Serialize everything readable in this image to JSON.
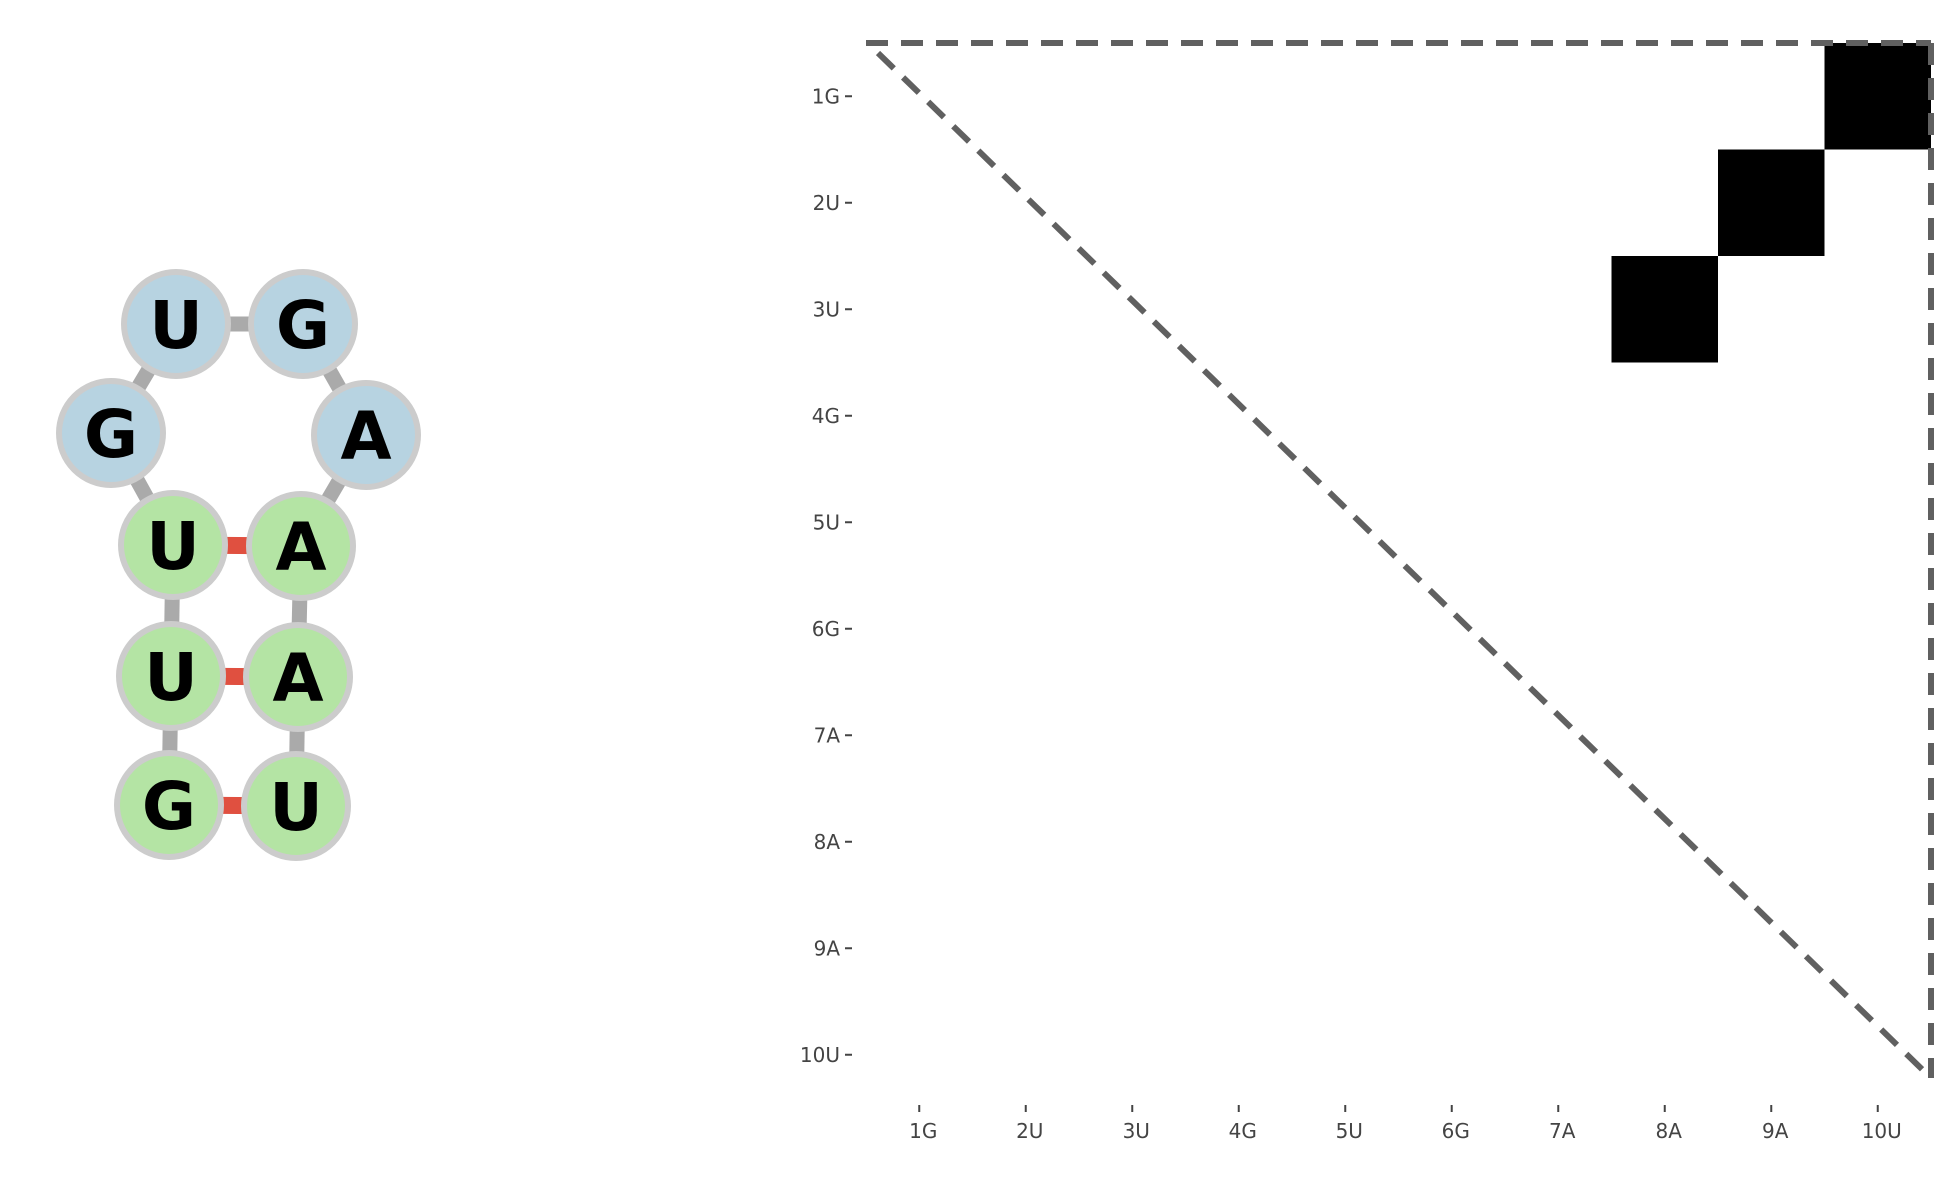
{
  "sequence": [
    "G",
    "U",
    "U",
    "G",
    "U",
    "G",
    "A",
    "A",
    "A",
    "U"
  ],
  "colors": {
    "stem_fill": "#b4e4a4",
    "loop_fill": "#b7d3e1",
    "node_stroke": "#cccccc",
    "backbone": "#aaaaaa",
    "pair_bond": "#e05040",
    "matrix_cell": "#000000",
    "diagonal": "#606060"
  },
  "structure": {
    "nodes": [
      {
        "index": 1,
        "letter": "G",
        "type": "stem"
      },
      {
        "index": 2,
        "letter": "U",
        "type": "stem"
      },
      {
        "index": 3,
        "letter": "U",
        "type": "stem"
      },
      {
        "index": 4,
        "letter": "G",
        "type": "loop"
      },
      {
        "index": 5,
        "letter": "U",
        "type": "loop"
      },
      {
        "index": 6,
        "letter": "G",
        "type": "loop"
      },
      {
        "index": 7,
        "letter": "A",
        "type": "loop"
      },
      {
        "index": 8,
        "letter": "A",
        "type": "stem"
      },
      {
        "index": 9,
        "letter": "A",
        "type": "stem"
      },
      {
        "index": 10,
        "letter": "U",
        "type": "stem"
      }
    ],
    "pairs": [
      [
        1,
        10
      ],
      [
        2,
        9
      ],
      [
        3,
        8
      ]
    ]
  },
  "chart_data": {
    "type": "heatmap",
    "x_labels": [
      "1G",
      "2U",
      "3U",
      "4G",
      "5U",
      "6G",
      "7A",
      "8A",
      "9A",
      "10U"
    ],
    "y_labels": [
      "1G",
      "2U",
      "3U",
      "4G",
      "5U",
      "6G",
      "7A",
      "8A",
      "9A",
      "10U"
    ],
    "cells": [
      {
        "row": "1G",
        "col": "10U",
        "value": 1
      },
      {
        "row": "2U",
        "col": "9A",
        "value": 1
      },
      {
        "row": "3U",
        "col": "8A",
        "value": 1
      }
    ]
  }
}
